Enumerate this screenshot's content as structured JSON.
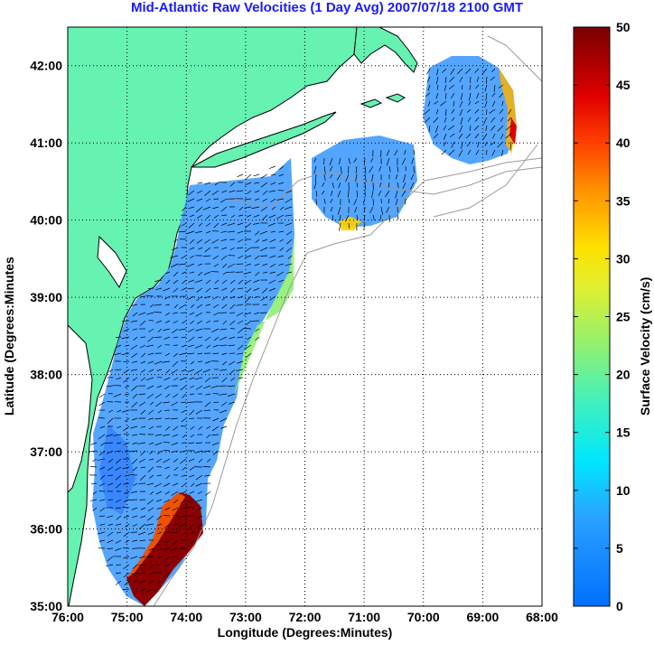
{
  "title": "Mid-Atlantic Raw Velocities (1 Day Avg) 2007/07/18 2100 GMT",
  "map": {
    "xlabel": "Longitude (Degrees:Minutes)",
    "ylabel": "Latitude (Degrees:Minutes",
    "xlim": [
      -76,
      -68
    ],
    "ylim": [
      35,
      42.5
    ],
    "x_ticks": [
      "76:00",
      "75:00",
      "74:00",
      "73:00",
      "72:00",
      "71:00",
      "70:00",
      "69:00",
      "68:00"
    ],
    "y_ticks": [
      "35:00",
      "36:00",
      "37:00",
      "38:00",
      "39:00",
      "40:00",
      "41:00",
      "42:00"
    ],
    "land_color": "#66f2b0",
    "grid": true
  },
  "colorbar": {
    "label": "Surface Velocity (cm/s)",
    "min": 0,
    "max": 50,
    "ticks": [
      "0",
      "5",
      "10",
      "15",
      "20",
      "25",
      "30",
      "35",
      "40",
      "45",
      "50"
    ],
    "colormap": "jet"
  }
}
